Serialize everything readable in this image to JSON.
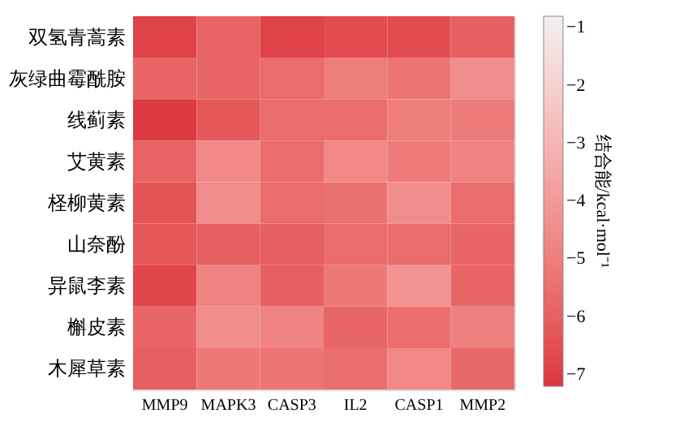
{
  "chart_data": {
    "type": "heatmap",
    "categories": [
      "MMP9",
      "MAPK3",
      "CASP3",
      "IL2",
      "CASP1",
      "MMP2"
    ],
    "y_categories": [
      "双氢青蒿素",
      "灰绿曲霉酰胺",
      "线蓟素",
      "艾黄素",
      "柽柳黄素",
      "山奈酚",
      "异鼠李素",
      "槲皮素",
      "木犀草素"
    ],
    "cells": [
      [
        -6.9,
        -5.9,
        -6.9,
        -6.6,
        -6.6,
        -6.0
      ],
      [
        -5.8,
        -5.8,
        -5.6,
        -5.0,
        -5.3,
        -4.4
      ],
      [
        -7.1,
        -6.2,
        -5.6,
        -5.6,
        -5.0,
        -5.1
      ],
      [
        -5.9,
        -4.6,
        -5.6,
        -4.6,
        -5.1,
        -4.8
      ],
      [
        -6.4,
        -4.5,
        -5.6,
        -5.4,
        -4.4,
        -5.6
      ],
      [
        -6.2,
        -6.0,
        -6.0,
        -5.6,
        -5.6,
        -5.8
      ],
      [
        -6.8,
        -4.8,
        -6.0,
        -5.2,
        -4.2,
        -5.8
      ],
      [
        -5.8,
        -4.5,
        -4.8,
        -5.8,
        -5.5,
        -4.9
      ],
      [
        -6.0,
        -5.2,
        -5.3,
        -5.5,
        -4.6,
        -5.7
      ]
    ],
    "clabel": "结合能/kcal·mol⁻¹",
    "clim": [
      -7.2,
      -0.8
    ],
    "cticks": [
      -7,
      -6,
      -5,
      -4,
      -3,
      -2,
      -1
    ],
    "colors": [
      "#dc3540",
      "#f3f0f0"
    ]
  }
}
